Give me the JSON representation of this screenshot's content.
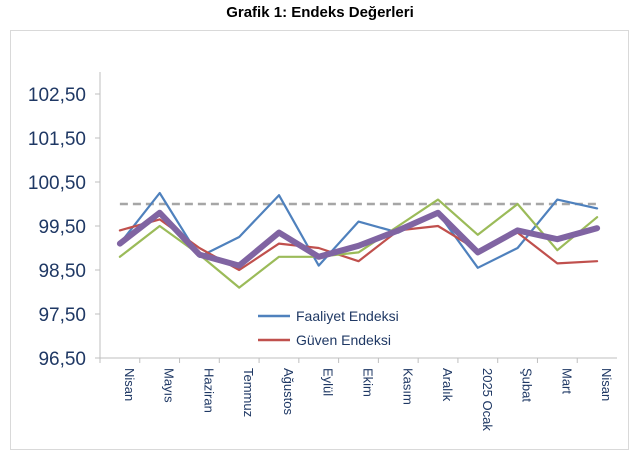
{
  "chart_data": {
    "type": "line",
    "title": "Grafik 1: Endeks Değerleri",
    "xlabel": "",
    "ylabel": "",
    "categories": [
      "Nisan",
      "Mayıs",
      "Haziran",
      "Temmuz",
      "Ağustos",
      "Eylül",
      "Ekim",
      "Kasım",
      "Aralık",
      "2025 Ocak",
      "Şubat",
      "Mart",
      "Nisan"
    ],
    "y_tick_labels": [
      "96,50",
      "97,50",
      "98,50",
      "99,50",
      "100,50",
      "101,50",
      "102,50"
    ],
    "ylim": [
      96.5,
      103.0
    ],
    "grid": false,
    "legend_position": "bottom-center",
    "series": [
      {
        "name": "Faaliyet Endeksi",
        "color": "#4f81bd",
        "in_legend": true,
        "values": [
          99.1,
          100.25,
          98.8,
          99.25,
          100.2,
          98.6,
          99.6,
          99.35,
          99.8,
          98.55,
          99.0,
          100.1,
          99.9
        ]
      },
      {
        "name": "Güven Endeksi",
        "color": "#c0504d",
        "in_legend": true,
        "values": [
          99.4,
          99.65,
          99.0,
          98.5,
          99.1,
          99.0,
          98.7,
          99.4,
          99.5,
          98.95,
          99.35,
          98.65,
          98.7
        ]
      },
      {
        "name": "",
        "color": "#9bbb59",
        "in_legend": false,
        "values": [
          98.8,
          99.5,
          98.85,
          98.1,
          98.8,
          98.8,
          98.9,
          99.5,
          100.1,
          99.3,
          100.0,
          98.95,
          99.7
        ]
      },
      {
        "name": "",
        "color": "#8064a2",
        "in_legend": false,
        "bold": true,
        "values": [
          99.1,
          99.8,
          98.85,
          98.6,
          99.35,
          98.8,
          99.05,
          99.4,
          99.8,
          98.9,
          99.4,
          99.2,
          99.45
        ]
      }
    ],
    "reference_line": {
      "value": 100.0,
      "color": "#a6a6a6",
      "style": "dashed"
    }
  }
}
